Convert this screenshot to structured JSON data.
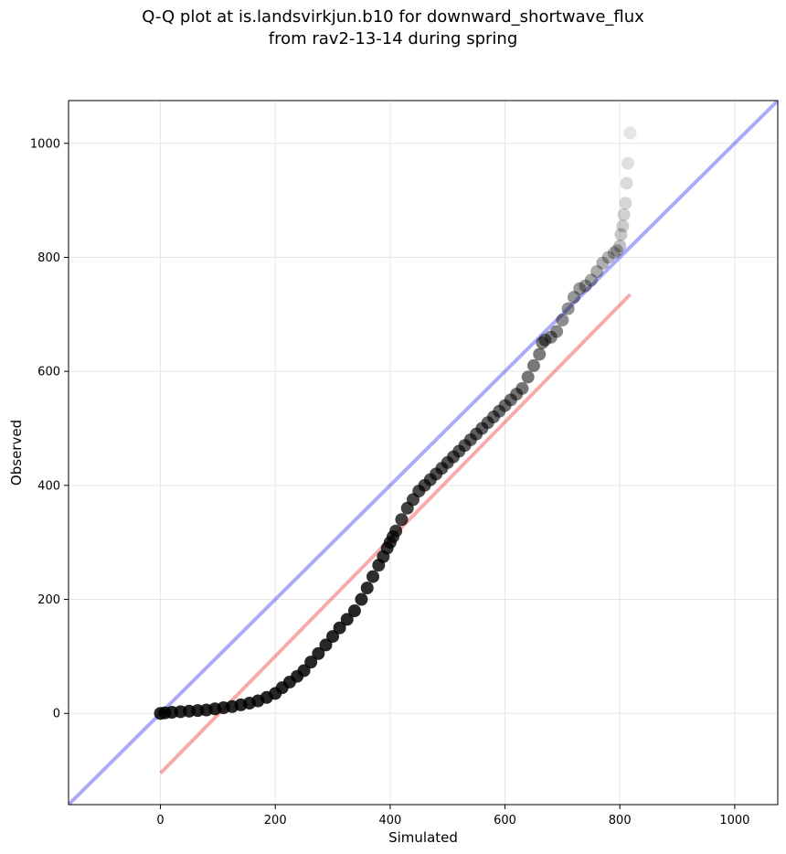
{
  "chart_data": {
    "type": "scatter",
    "title_line1": "Q-Q plot at is.landsvirkjun.b10 for downward_shortwave_flux",
    "title_line2": "from rav2-13-14 during spring",
    "xlabel": "Simulated",
    "ylabel": "Observed",
    "xlim": [
      -160,
      1075
    ],
    "ylim": [
      -160,
      1075
    ],
    "xticks": [
      0,
      200,
      400,
      600,
      800,
      1000
    ],
    "yticks": [
      0,
      200,
      400,
      600,
      800,
      1000
    ],
    "grid": true,
    "colors": {
      "points": "#000000",
      "identity_line": "#0000ee",
      "fit_line": "#ee0000",
      "grid": "#e6e6e6"
    },
    "identity_line": {
      "x": [
        -160,
        1075
      ],
      "y": [
        -160,
        1075
      ]
    },
    "fit_line": {
      "x": [
        0,
        818
      ],
      "y": [
        -105,
        735
      ]
    },
    "points": {
      "x": [
        0,
        8,
        20,
        35,
        50,
        65,
        80,
        95,
        110,
        125,
        140,
        155,
        170,
        185,
        200,
        212,
        225,
        238,
        250,
        262,
        275,
        288,
        300,
        312,
        325,
        338,
        350,
        360,
        370,
        380,
        388,
        395,
        400,
        405,
        410,
        420,
        430,
        440,
        450,
        460,
        470,
        480,
        490,
        500,
        510,
        520,
        530,
        540,
        550,
        560,
        570,
        580,
        590,
        600,
        610,
        620,
        630,
        640,
        650,
        660,
        665,
        670,
        680,
        690,
        700,
        710,
        720,
        730,
        740,
        750,
        760,
        770,
        780,
        790,
        795,
        800,
        802,
        805,
        807,
        810,
        812,
        814,
        818
      ],
      "y": [
        0,
        1,
        2,
        3,
        4,
        5,
        6,
        8,
        10,
        12,
        15,
        18,
        22,
        28,
        35,
        45,
        55,
        65,
        75,
        90,
        105,
        120,
        135,
        150,
        165,
        180,
        200,
        220,
        240,
        260,
        275,
        290,
        300,
        310,
        320,
        340,
        360,
        375,
        390,
        400,
        410,
        420,
        430,
        440,
        450,
        460,
        470,
        480,
        490,
        500,
        510,
        520,
        530,
        540,
        550,
        560,
        570,
        590,
        610,
        630,
        650,
        655,
        660,
        670,
        690,
        710,
        730,
        745,
        750,
        760,
        775,
        790,
        800,
        808,
        812,
        820,
        840,
        855,
        875,
        895,
        930,
        965,
        1018
      ]
    }
  }
}
